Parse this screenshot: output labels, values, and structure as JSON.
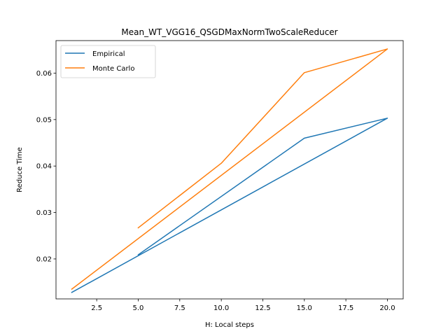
{
  "chart_data": {
    "type": "line",
    "title": "Mean_WT_VGG16_QSGDMaxNormTwoScaleReducer",
    "xlabel": "H: Local steps",
    "ylabel": "Reduce Time",
    "xlim": [
      0.05,
      20.95
    ],
    "ylim": [
      0.0114,
      0.067
    ],
    "x_ticks": [
      2.5,
      5.0,
      7.5,
      10.0,
      12.5,
      15.0,
      17.5,
      20.0
    ],
    "x_tick_labels": [
      "2.5",
      "5.0",
      "7.5",
      "10.0",
      "12.5",
      "15.0",
      "17.5",
      "20.0"
    ],
    "y_ticks": [
      0.02,
      0.03,
      0.04,
      0.05,
      0.06
    ],
    "y_tick_labels": [
      "0.02",
      "0.03",
      "0.04",
      "0.05",
      "0.06"
    ],
    "grid": false,
    "legend_position": "top-left",
    "series": [
      {
        "name": "Empirical",
        "color": "#1f77b4",
        "x": [
          5,
          15,
          20,
          1
        ],
        "y": [
          0.0209,
          0.046,
          0.0503,
          0.0128
        ]
      },
      {
        "name": "Monte Carlo",
        "color": "#ff7f0e",
        "x": [
          5,
          10,
          15,
          20,
          1
        ],
        "y": [
          0.0267,
          0.0406,
          0.0601,
          0.0652,
          0.0135
        ]
      }
    ]
  }
}
